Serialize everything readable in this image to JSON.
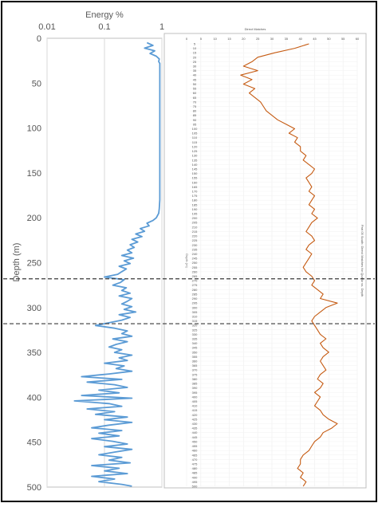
{
  "chart_data": [
    {
      "type": "line",
      "title": "",
      "xlabel": "Energy %",
      "ylabel": "Depth (m)",
      "x_scale": "log",
      "xlim": [
        0.01,
        1
      ],
      "ylim": [
        0,
        500
      ],
      "y_inverted": true,
      "x_ticks": [
        "0.01",
        "0.1",
        "1"
      ],
      "y_ticks": [
        "0",
        "50",
        "100",
        "150",
        "200",
        "250",
        "300",
        "350",
        "400",
        "450",
        "500"
      ],
      "grid": "vertical",
      "line_color": "#5b9bd5",
      "series": [
        {
          "depth": [
            5,
            8,
            11,
            14,
            17,
            20,
            23,
            26,
            28,
            30,
            40,
            60,
            80,
            100,
            120,
            140,
            160,
            180,
            190,
            195,
            200,
            203,
            206,
            209,
            212,
            215,
            218,
            221,
            224,
            227,
            230,
            233,
            236,
            239,
            242,
            245,
            248,
            251,
            254,
            257,
            260,
            263,
            266,
            269,
            272,
            275,
            278,
            281,
            284,
            287,
            290,
            293,
            296,
            299,
            302,
            305,
            308,
            311,
            314,
            317,
            320,
            323,
            326,
            329,
            332,
            335,
            338,
            341,
            344,
            347,
            350,
            353,
            356,
            359,
            362,
            365,
            368,
            371,
            374,
            377,
            380,
            383,
            386,
            389,
            392,
            395,
            398,
            401,
            404,
            407,
            410,
            413,
            416,
            419,
            422,
            425,
            428,
            431,
            434,
            437,
            440,
            443,
            446,
            449,
            452,
            455,
            458,
            461,
            464,
            467,
            470,
            473,
            476,
            479,
            482,
            485,
            488,
            491,
            494,
            497,
            499
          ],
          "energy": [
            0.55,
            0.7,
            0.5,
            0.75,
            0.62,
            0.8,
            0.9,
            0.88,
            0.92,
            0.92,
            0.92,
            0.92,
            0.92,
            0.92,
            0.92,
            0.92,
            0.92,
            0.92,
            0.9,
            0.88,
            0.8,
            0.7,
            0.55,
            0.6,
            0.42,
            0.5,
            0.35,
            0.45,
            0.3,
            0.38,
            0.28,
            0.33,
            0.25,
            0.3,
            0.2,
            0.32,
            0.22,
            0.28,
            0.18,
            0.24,
            0.2,
            0.17,
            0.1,
            0.22,
            0.19,
            0.14,
            0.24,
            0.2,
            0.28,
            0.18,
            0.3,
            0.25,
            0.2,
            0.3,
            0.22,
            0.35,
            0.18,
            0.28,
            0.2,
            0.12,
            0.07,
            0.15,
            0.25,
            0.2,
            0.3,
            0.14,
            0.25,
            0.16,
            0.12,
            0.2,
            0.15,
            0.3,
            0.18,
            0.25,
            0.1,
            0.22,
            0.16,
            0.3,
            0.12,
            0.04,
            0.2,
            0.05,
            0.15,
            0.25,
            0.08,
            0.18,
            0.04,
            0.3,
            0.03,
            0.12,
            0.2,
            0.05,
            0.15,
            0.07,
            0.25,
            0.1,
            0.3,
            0.12,
            0.06,
            0.2,
            0.08,
            0.18,
            0.06,
            0.14,
            0.25,
            0.1,
            0.3,
            0.15,
            0.08,
            0.2,
            0.12,
            0.28,
            0.06,
            0.18,
            0.1,
            0.25,
            0.06,
            0.15,
            0.08,
            0.2,
            0.3
          ]
        }
      ],
      "reference_lines": [
        {
          "axis": "y",
          "value": 268,
          "style": "dashed"
        },
        {
          "axis": "y",
          "value": 318,
          "style": "dashed"
        }
      ]
    },
    {
      "type": "line",
      "title": "Direct Matches",
      "xlabel": "",
      "ylabel": "Depth (m)",
      "right_label": "Part 05 South: Direct Matches for Quartz vs. Depth",
      "xlim": [
        0,
        60
      ],
      "y_inverted": true,
      "line_color": "#c55a11",
      "x_ticks": [
        "0",
        "5",
        "10",
        "15",
        "20",
        "25",
        "30",
        "35",
        "40",
        "45",
        "50",
        "55",
        "60"
      ],
      "series": [
        {
          "depth": [
            5,
            10,
            15,
            20,
            25,
            30,
            35,
            40,
            45,
            50,
            55,
            60,
            65,
            70,
            75,
            80,
            85,
            90,
            95,
            100,
            105,
            110,
            115,
            120,
            125,
            130,
            135,
            140,
            145,
            150,
            155,
            160,
            165,
            170,
            175,
            180,
            185,
            190,
            195,
            200,
            205,
            210,
            215,
            220,
            225,
            230,
            235,
            240,
            245,
            250,
            255,
            260,
            265,
            270,
            275,
            280,
            285,
            290,
            295,
            300,
            305,
            310,
            315,
            320,
            325,
            330,
            335,
            340,
            345,
            350,
            355,
            360,
            365,
            370,
            375,
            380,
            385,
            390,
            395,
            400,
            405,
            410,
            415,
            420,
            425,
            430,
            435,
            440,
            445,
            450,
            455,
            460,
            465,
            470,
            475,
            480,
            485,
            490,
            495,
            500
          ],
          "matches": [
            43,
            38,
            31,
            25,
            23,
            20,
            25,
            19,
            23,
            20,
            24,
            22,
            24,
            26,
            27,
            28,
            30,
            32,
            35,
            38,
            36,
            39,
            38,
            40,
            40,
            42,
            41,
            43,
            45,
            44,
            42,
            43,
            44,
            43,
            45,
            44,
            43,
            45,
            44,
            46,
            44,
            43,
            42,
            44,
            45,
            43,
            42,
            44,
            43,
            42,
            41,
            42,
            44,
            45,
            44,
            46,
            48,
            47,
            53,
            49,
            47,
            45,
            44,
            45,
            46,
            47,
            49,
            47,
            48,
            50,
            48,
            47,
            48,
            49,
            47,
            46,
            48,
            47,
            45,
            47,
            46,
            45,
            47,
            48,
            50,
            53,
            51,
            48,
            47,
            45,
            44,
            43,
            41,
            40,
            40,
            39,
            41,
            40,
            42,
            41
          ]
        }
      ]
    }
  ]
}
